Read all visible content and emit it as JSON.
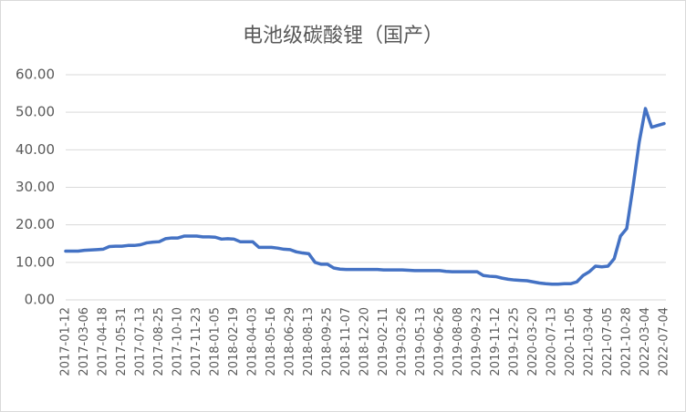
{
  "chart_data": {
    "type": "line",
    "title": "电池级碳酸锂（国产）",
    "categories": [
      "2017-01-12",
      null,
      null,
      "2017-03-06",
      null,
      null,
      "2017-04-18",
      null,
      null,
      "2017-05-31",
      null,
      null,
      "2017-07-13",
      null,
      null,
      "2017-08-25",
      null,
      null,
      "2017-10-10",
      null,
      null,
      "2017-11-23",
      null,
      null,
      "2018-01-05",
      null,
      null,
      "2018-02-19",
      null,
      null,
      "2018-04-03",
      null,
      null,
      "2018-05-16",
      null,
      null,
      "2018-06-29",
      null,
      null,
      "2018-08-13",
      null,
      null,
      "2018-09-25",
      null,
      null,
      "2018-11-07",
      null,
      null,
      "2018-12-20",
      null,
      null,
      "2019-02-11",
      null,
      null,
      "2019-03-26",
      null,
      null,
      "2019-05-13",
      null,
      null,
      "2019-06-26",
      null,
      null,
      "2019-08-08",
      null,
      null,
      "2019-09-23",
      null,
      null,
      "2019-11-12",
      null,
      null,
      "2019-12-25",
      null,
      null,
      "2020-03-20",
      null,
      null,
      "2020-07-13",
      null,
      null,
      "2020-11-05",
      null,
      null,
      "2021-03-04",
      null,
      null,
      "2021-07-05",
      null,
      null,
      "2021-10-28",
      null,
      null,
      "2022-03-04",
      null,
      null,
      "2022-07-04"
    ],
    "series": [
      {
        "color": "#4472c4",
        "values": [
          13,
          13,
          13,
          13.2,
          13.3,
          13.4,
          13.5,
          14.2,
          14.3,
          14.3,
          14.5,
          14.5,
          14.7,
          15.2,
          15.4,
          15.5,
          16.3,
          16.5,
          16.5,
          17,
          17,
          17,
          16.8,
          16.8,
          16.7,
          16.2,
          16.3,
          16.2,
          15.5,
          15.5,
          15.5,
          14,
          14,
          14,
          13.8,
          13.5,
          13.4,
          12.8,
          12.5,
          12.3,
          10,
          9.5,
          9.5,
          8.5,
          8.2,
          8.1,
          8.1,
          8.1,
          8.1,
          8.1,
          8.1,
          8.0,
          8,
          8,
          8.0,
          7.9,
          7.8,
          7.8,
          7.8,
          7.8,
          7.8,
          7.6,
          7.5,
          7.5,
          7.5,
          7.5,
          7.5,
          6.5,
          6.3,
          6.2,
          5.8,
          5.5,
          5.3,
          5.2,
          5.1,
          4.8,
          4.5,
          4.3,
          4.2,
          4.2,
          4.3,
          4.3,
          4.8,
          6.5,
          7.5,
          9,
          8.8,
          9,
          11,
          17,
          19,
          30,
          42,
          51,
          46,
          46.5,
          47
        ]
      }
    ],
    "ylim": [
      0,
      60
    ],
    "yticks": [
      {
        "value": 0,
        "label": "0.00"
      },
      {
        "value": 10,
        "label": "10.00"
      },
      {
        "value": 20,
        "label": "20.00"
      },
      {
        "value": 30,
        "label": "30.00"
      },
      {
        "value": 40,
        "label": "40.00"
      },
      {
        "value": 50,
        "label": "50.00"
      },
      {
        "value": 60,
        "label": "60.00"
      }
    ],
    "grid": true
  }
}
